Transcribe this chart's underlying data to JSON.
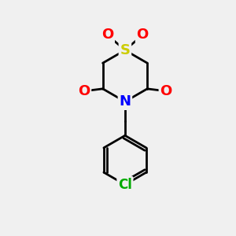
{
  "bg_color": "#f0f0f0",
  "bond_color": "#000000",
  "bond_width": 2.0,
  "atom_colors": {
    "S": "#cccc00",
    "O": "#ff0000",
    "N": "#0000ff",
    "Cl": "#00aa00",
    "C": "#000000"
  },
  "atom_fontsizes": {
    "S": 13,
    "O": 13,
    "N": 13,
    "Cl": 12,
    "C": 10
  }
}
